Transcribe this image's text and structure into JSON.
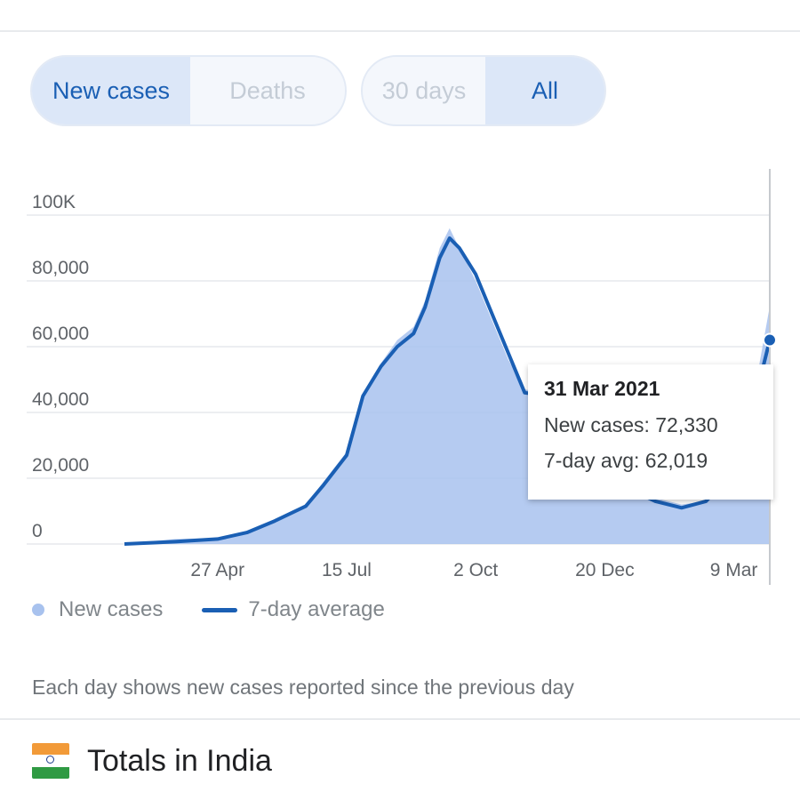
{
  "toggles": {
    "metric": [
      {
        "label": "New cases",
        "active": true
      },
      {
        "label": "Deaths",
        "active": false
      }
    ],
    "range": [
      {
        "label": "30 days",
        "active": false
      },
      {
        "label": "All",
        "active": true
      }
    ]
  },
  "colors": {
    "area": "#a8c2ee",
    "line": "#1a5fb4",
    "active": "#1a5fb4",
    "muted": "#c4ccd6"
  },
  "chart_data": {
    "type": "area",
    "title": "",
    "xlabel": "",
    "ylabel": "",
    "ylim": [
      0,
      100000
    ],
    "yticks": [
      {
        "value": 0,
        "label": "0"
      },
      {
        "value": 20000,
        "label": "20,000"
      },
      {
        "value": 40000,
        "label": "40,000"
      },
      {
        "value": 60000,
        "label": "60,000"
      },
      {
        "value": 80000,
        "label": "80,000"
      },
      {
        "value": 100000,
        "label": "100K"
      }
    ],
    "xlim": [
      "2020-03-01",
      "2021-03-31"
    ],
    "xticks": [
      {
        "date": "2020-04-27",
        "label": "27 Apr"
      },
      {
        "date": "2020-07-15",
        "label": "15 Jul"
      },
      {
        "date": "2020-10-02",
        "label": "2 Oct"
      },
      {
        "date": "2020-12-20",
        "label": "20 Dec"
      },
      {
        "date": "2021-03-09",
        "label": "9 Mar"
      }
    ],
    "grid": true,
    "series": [
      {
        "name": "New cases",
        "points": [
          [
            "2020-03-01",
            0
          ],
          [
            "2020-04-01",
            1500
          ],
          [
            "2020-04-27",
            1800
          ],
          [
            "2020-05-15",
            4000
          ],
          [
            "2020-06-01",
            7000
          ],
          [
            "2020-06-20",
            12000
          ],
          [
            "2020-07-01",
            19000
          ],
          [
            "2020-07-15",
            28000
          ],
          [
            "2020-07-25",
            45000
          ],
          [
            "2020-08-05",
            55000
          ],
          [
            "2020-08-15",
            62000
          ],
          [
            "2020-08-25",
            66000
          ],
          [
            "2020-09-01",
            74000
          ],
          [
            "2020-09-10",
            90000
          ],
          [
            "2020-09-16",
            96000
          ],
          [
            "2020-09-22",
            90000
          ],
          [
            "2020-10-02",
            80000
          ],
          [
            "2020-10-12",
            68000
          ],
          [
            "2020-10-22",
            56000
          ],
          [
            "2020-11-01",
            47000
          ],
          [
            "2020-11-15",
            46000
          ],
          [
            "2020-12-01",
            40000
          ],
          [
            "2020-12-20",
            24000
          ],
          [
            "2021-01-05",
            18000
          ],
          [
            "2021-01-20",
            14000
          ],
          [
            "2021-02-05",
            12000
          ],
          [
            "2021-02-20",
            13000
          ],
          [
            "2021-03-09",
            22000
          ],
          [
            "2021-03-20",
            42000
          ],
          [
            "2021-03-31",
            72330
          ]
        ]
      },
      {
        "name": "7-day average",
        "points": [
          [
            "2020-03-01",
            0
          ],
          [
            "2020-04-01",
            700
          ],
          [
            "2020-04-27",
            1500
          ],
          [
            "2020-05-15",
            3500
          ],
          [
            "2020-06-01",
            7000
          ],
          [
            "2020-06-20",
            11500
          ],
          [
            "2020-07-01",
            18000
          ],
          [
            "2020-07-15",
            27000
          ],
          [
            "2020-07-25",
            45000
          ],
          [
            "2020-08-05",
            54000
          ],
          [
            "2020-08-15",
            60000
          ],
          [
            "2020-08-25",
            64000
          ],
          [
            "2020-09-01",
            72000
          ],
          [
            "2020-09-10",
            87000
          ],
          [
            "2020-09-16",
            93000
          ],
          [
            "2020-09-22",
            90000
          ],
          [
            "2020-10-02",
            82000
          ],
          [
            "2020-10-12",
            70000
          ],
          [
            "2020-10-22",
            58000
          ],
          [
            "2020-11-01",
            46000
          ],
          [
            "2020-11-15",
            45000
          ],
          [
            "2020-12-01",
            38000
          ],
          [
            "2020-12-20",
            23000
          ],
          [
            "2021-01-05",
            16500
          ],
          [
            "2021-01-20",
            13000
          ],
          [
            "2021-02-05",
            11000
          ],
          [
            "2021-02-20",
            13000
          ],
          [
            "2021-03-09",
            22000
          ],
          [
            "2021-03-20",
            40000
          ],
          [
            "2021-03-31",
            62019
          ]
        ]
      }
    ],
    "highlight": {
      "date": "2021-03-31",
      "value": 62019
    }
  },
  "tooltip": {
    "date": "31 Mar 2021",
    "new_cases": "New cases: 72,330",
    "avg": "7-day avg: 62,019"
  },
  "legend": {
    "cases": "New cases",
    "avg": "7-day average"
  },
  "note": "Each day shows new cases reported since the previous day",
  "totals": {
    "title": "Totals in India",
    "flag_icon": "india-flag-icon"
  }
}
